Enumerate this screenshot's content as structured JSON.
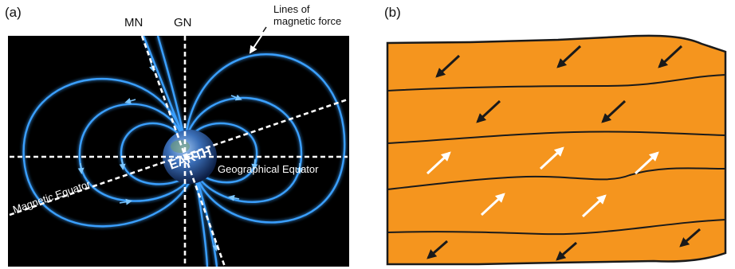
{
  "panel_a": {
    "label": "(a)",
    "mn": "MN",
    "gn": "GN",
    "lines_note_line1": "Lines of",
    "lines_note_line2": "magnetic force",
    "earth": "EARTH",
    "geographical_equator": "Geographical Equator",
    "magnetic_equator": "Magnetic Equator",
    "colors": {
      "background": "#000000",
      "field_line": "#3aa0ff",
      "glow": "#0b4f9e",
      "axis": "#ffffff",
      "earth": "#2f5fa8"
    }
  },
  "panel_b": {
    "label": "(b)",
    "colors": {
      "fill": "#f5951e",
      "outline": "#1a1a1a",
      "arrow_dark": "#1a1a1a",
      "arrow_light": "#ffffff"
    },
    "bands": [
      {
        "direction": "down-left",
        "arrow_color": "dark",
        "arrow_count": 3
      },
      {
        "direction": "down-left",
        "arrow_color": "dark",
        "arrow_count": 2
      },
      {
        "direction": "up-right",
        "arrow_color": "light",
        "arrow_count": 3
      },
      {
        "direction": "up-right",
        "arrow_color": "light",
        "arrow_count": 2
      },
      {
        "direction": "down-left",
        "arrow_color": "dark",
        "arrow_count": 3
      }
    ]
  }
}
